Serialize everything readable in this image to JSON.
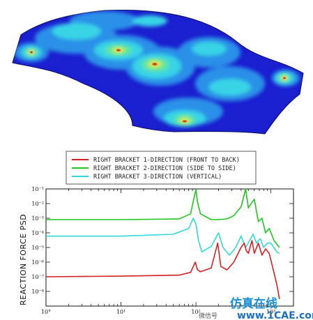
{
  "contour_plot": {
    "colors": {
      "background": "#1a1fcf",
      "level1": "#2a90e8",
      "level2": "#37d4e6",
      "level3": "#5fe6a0",
      "level4": "#d8ea2a",
      "peak": "#e43a2a"
    }
  },
  "chart_data": {
    "type": "line",
    "xscale": "log",
    "yscale": "log",
    "xlim": [
      1,
      2000
    ],
    "ylim": [
      1e-09,
      0.1
    ],
    "ylabel": "REACTION FORCE PSD",
    "xlabel": "",
    "x_ticks": [
      "10°",
      "10¹",
      "10²",
      "10³"
    ],
    "y_ticks": [
      "10⁻¹",
      "10⁻²",
      "10⁻³",
      "10⁻⁴",
      "10⁻⁵",
      "10⁻⁶",
      "10⁻⁷",
      "10⁻⁸"
    ],
    "legend_position": "top",
    "series": [
      {
        "name": "RIGHT BRACKET 1-DIRECTION (FRONT TO BACK)",
        "color": "#d42020",
        "x": [
          1,
          10,
          60,
          85,
          98,
          105,
          115,
          160,
          195,
          215,
          260,
          320,
          400,
          440,
          470,
          500,
          520,
          560,
          600,
          680,
          760,
          850,
          950,
          1050,
          1200,
          1300
        ],
        "y": [
          1e-07,
          1.1e-07,
          1.3e-07,
          2e-07,
          1e-06,
          3e-07,
          2.2e-07,
          4e-07,
          2e-05,
          5e-07,
          3e-07,
          1e-06,
          1e-05,
          2e-05,
          6e-06,
          4e-06,
          8e-06,
          3e-05,
          4e-06,
          2e-05,
          3e-06,
          8e-06,
          4e-06,
          5e-07,
          3e-08,
          3e-09
        ]
      },
      {
        "name": "RIGHT BRACKET 2-DIRECTION (SIDE TO SIDE)",
        "color": "#1ec71e",
        "x": [
          1,
          10,
          60,
          85,
          95,
          100,
          105,
          115,
          160,
          200,
          260,
          320,
          400,
          460,
          500,
          560,
          600,
          680,
          760,
          850,
          950,
          1100,
          1300
        ],
        "y": [
          0.0008,
          0.0008,
          0.0009,
          0.002,
          0.03,
          0.09,
          0.012,
          0.002,
          0.0008,
          0.0008,
          0.0009,
          0.0015,
          0.006,
          0.1,
          0.005,
          0.012,
          0.02,
          0.0006,
          0.001,
          0.0001,
          0.0002,
          3e-05,
          1e-05
        ]
      },
      {
        "name": "RIGHT BRACKET 3-DIRECTION (VERTICAL)",
        "color": "#30d8dc",
        "x": [
          1,
          10,
          50,
          80,
          92,
          100,
          108,
          120,
          160,
          200,
          230,
          280,
          340,
          400,
          460,
          520,
          580,
          640,
          720,
          800,
          900,
          1000,
          1200,
          1300
        ],
        "y": [
          6e-05,
          6e-05,
          8e-05,
          0.0002,
          0.001,
          0.0004,
          3e-05,
          5e-06,
          1.2e-05,
          0.0001,
          1e-05,
          3e-06,
          1e-05,
          6e-05,
          1e-05,
          3e-05,
          8e-05,
          2e-05,
          4e-05,
          1e-05,
          2e-05,
          2e-05,
          5e-06,
          4e-06
        ]
      }
    ]
  },
  "watermark": {
    "brand": "仿真在线",
    "site": "www.1CAE.com",
    "faint": "微信号"
  }
}
